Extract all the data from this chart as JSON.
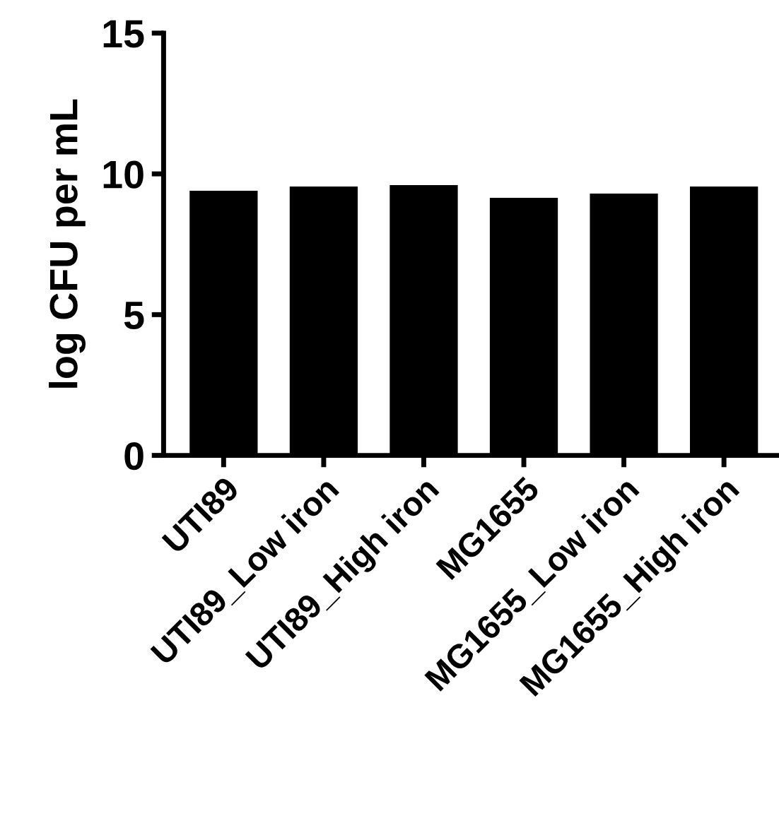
{
  "chart_data": {
    "type": "bar",
    "ylabel": "log CFU per mL",
    "categories": [
      "UTI89",
      "UTI89_Low iron",
      "UTI89_High iron",
      "MG1655",
      "MG1655_Low iron",
      "MG1655_High iron"
    ],
    "values": [
      9.4,
      9.55,
      9.6,
      9.15,
      9.3,
      9.55
    ],
    "color": "#000000",
    "ylim": [
      0,
      15
    ],
    "yticks": [
      0,
      5,
      10,
      15
    ],
    "grid": false,
    "legend": false
  }
}
